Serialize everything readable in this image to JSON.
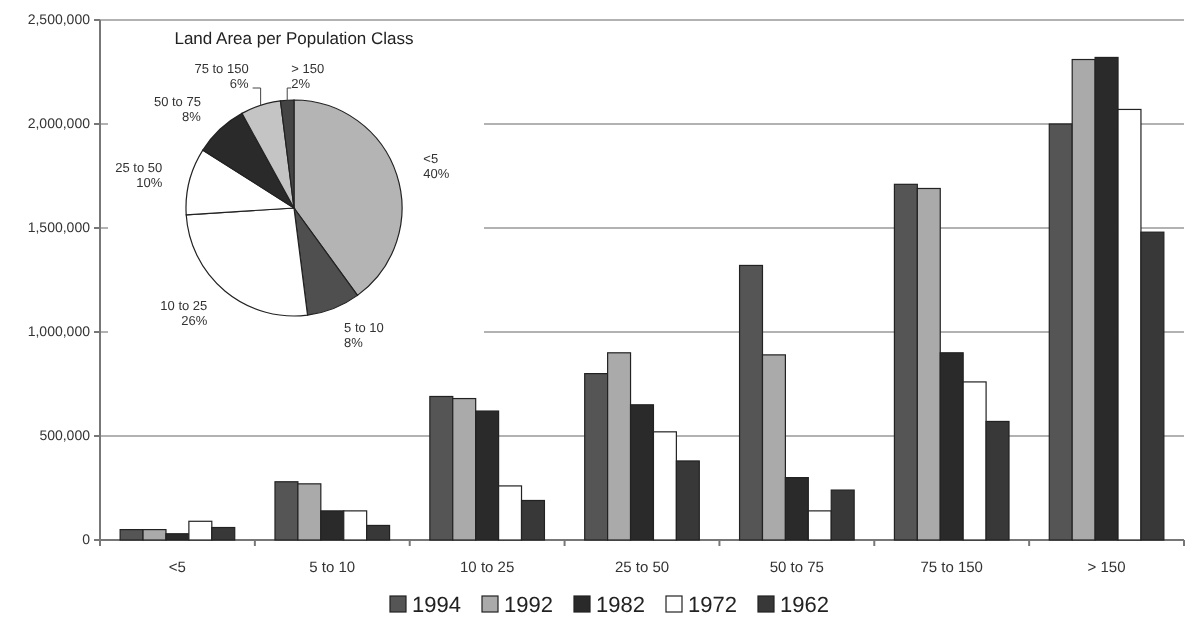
{
  "chart_data": [
    {
      "type": "bar",
      "categories": [
        "<5",
        "5 to 10",
        "10 to 25",
        "25 to 50",
        "50 to 75",
        "75 to 150",
        "> 150"
      ],
      "series": [
        {
          "name": "1994",
          "color": "#555555",
          "values": [
            50000,
            280000,
            690000,
            800000,
            1320000,
            1710000,
            2000000
          ]
        },
        {
          "name": "1992",
          "color": "#aaaaaa",
          "values": [
            50000,
            270000,
            680000,
            900000,
            890000,
            1690000,
            2310000
          ]
        },
        {
          "name": "1982",
          "color": "#2a2a2a",
          "values": [
            30000,
            140000,
            620000,
            650000,
            300000,
            900000,
            2320000
          ]
        },
        {
          "name": "1972",
          "color": "#ffffff",
          "values": [
            90000,
            140000,
            260000,
            520000,
            140000,
            760000,
            2070000
          ]
        },
        {
          "name": "1962",
          "color": "#383838",
          "values": [
            60000,
            70000,
            190000,
            380000,
            240000,
            570000,
            1480000
          ]
        }
      ],
      "ylim": [
        0,
        2500000
      ],
      "yticks": [
        {
          "value": 0,
          "label": "0"
        },
        {
          "value": 500000,
          "label": "500,000"
        },
        {
          "value": 1000000,
          "label": "1,000,000"
        },
        {
          "value": 1500000,
          "label": "1,500,000"
        },
        {
          "value": 2000000,
          "label": "2,000,000"
        },
        {
          "value": 2500000,
          "label": "2,500,000"
        }
      ],
      "grid": "y",
      "legend": "bottom"
    },
    {
      "type": "pie",
      "title": "Land Area per Population Class",
      "categories": [
        "<5",
        "5 to 10",
        "10 to 25",
        "25 to 50",
        "50 to 75",
        "75 to 150",
        "> 150"
      ],
      "values": [
        40,
        8,
        26,
        10,
        8,
        6,
        2
      ],
      "colors": [
        "#b4b4b4",
        "#4f4f4f",
        "#ffffff",
        "#ffffff",
        "#2a2a2a",
        "#c4c4c4",
        "#444444"
      ],
      "value_labels": [
        "40%",
        "8%",
        "26%",
        "10%",
        "8%",
        "6%",
        "2%"
      ]
    }
  ]
}
